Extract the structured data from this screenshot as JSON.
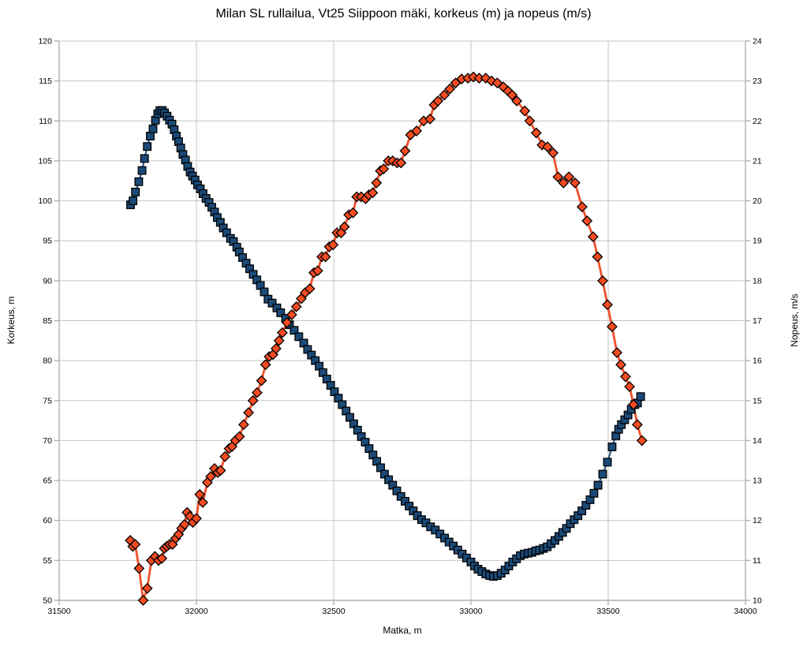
{
  "title": "Milan SL rullailua, Vt25 Siippoon mäki, korkeus (m) ja nopeus (m/s)",
  "chart_data": {
    "type": "line",
    "title": "Milan SL rullailua, Vt25 Siippoon mäki, korkeus (m) ja nopeus (m/s)",
    "xlabel": "Matka, m",
    "ylabel_left": "Korkeus, m",
    "ylabel_right": "Nopeus, m/s",
    "x_range": [
      31500,
      34000
    ],
    "x_ticks": [
      31500,
      32000,
      32500,
      33000,
      33500,
      34000
    ],
    "y_left_range": [
      50,
      120
    ],
    "y_left_ticks": [
      50,
      55,
      60,
      65,
      70,
      75,
      80,
      85,
      90,
      95,
      100,
      105,
      110,
      115,
      120
    ],
    "y_right_range": [
      10,
      24
    ],
    "y_right_ticks": [
      10,
      11,
      12,
      13,
      14,
      15,
      16,
      17,
      18,
      19,
      20,
      21,
      22,
      23,
      24
    ],
    "grid": true,
    "legend": "none",
    "colors": {
      "background": "#FFFFFF",
      "grid": "#C4C4C4",
      "axis": "#AFAFAF",
      "text": "#000000",
      "korkeus_fill": "#1B4A78",
      "korkeus_line": "#2E5E8E",
      "nopeus_fill": "#F44B22",
      "nopeus_line": "#F0512A",
      "marker_stroke": "#000000"
    },
    "series": [
      {
        "name": "Korkeus, m",
        "axis": "left",
        "marker": "square",
        "fill": "#1B4A78",
        "line": "#2E5E8E",
        "points": [
          [
            31760,
            99.5
          ],
          [
            31769,
            100.0
          ],
          [
            31778,
            101.1
          ],
          [
            31790,
            102.4
          ],
          [
            31802,
            103.8
          ],
          [
            31811,
            105.3
          ],
          [
            31821,
            106.8
          ],
          [
            31832,
            108.1
          ],
          [
            31842,
            109.0
          ],
          [
            31851,
            110.1
          ],
          [
            31859,
            110.9
          ],
          [
            31867,
            111.3
          ],
          [
            31876,
            111.3
          ],
          [
            31884,
            111.0
          ],
          [
            31893,
            110.6
          ],
          [
            31902,
            110.1
          ],
          [
            31911,
            109.6
          ],
          [
            31919,
            108.9
          ],
          [
            31927,
            108.1
          ],
          [
            31935,
            107.4
          ],
          [
            31943,
            106.6
          ],
          [
            31951,
            105.8
          ],
          [
            31960,
            105.1
          ],
          [
            31968,
            104.3
          ],
          [
            31977,
            103.6
          ],
          [
            31986,
            103.1
          ],
          [
            31995,
            102.6
          ],
          [
            32004,
            102.0
          ],
          [
            32014,
            101.5
          ],
          [
            32024,
            100.9
          ],
          [
            32035,
            100.3
          ],
          [
            32046,
            99.8
          ],
          [
            32056,
            99.2
          ],
          [
            32066,
            98.6
          ],
          [
            32076,
            97.9
          ],
          [
            32087,
            97.3
          ],
          [
            32098,
            96.6
          ],
          [
            32110,
            96.0
          ],
          [
            32124,
            95.3
          ],
          [
            32135,
            94.9
          ],
          [
            32147,
            94.2
          ],
          [
            32156,
            93.6
          ],
          [
            32168,
            92.9
          ],
          [
            32181,
            92.2
          ],
          [
            32194,
            91.5
          ],
          [
            32207,
            90.8
          ],
          [
            32220,
            90.1
          ],
          [
            32233,
            89.4
          ],
          [
            32247,
            88.6
          ],
          [
            32261,
            87.7
          ],
          [
            32276,
            87.2
          ],
          [
            32293,
            86.6
          ],
          [
            32307,
            86.0
          ],
          [
            32325,
            85.3
          ],
          [
            32339,
            84.5
          ],
          [
            32356,
            83.8
          ],
          [
            32373,
            83.0
          ],
          [
            32391,
            82.2
          ],
          [
            32405,
            81.4
          ],
          [
            32419,
            80.7
          ],
          [
            32433,
            80.0
          ],
          [
            32447,
            79.3
          ],
          [
            32461,
            78.5
          ],
          [
            32475,
            77.7
          ],
          [
            32489,
            76.9
          ],
          [
            32503,
            76.1
          ],
          [
            32517,
            75.3
          ],
          [
            32531,
            74.5
          ],
          [
            32545,
            73.7
          ],
          [
            32559,
            72.9
          ],
          [
            32573,
            72.1
          ],
          [
            32587,
            71.3
          ],
          [
            32601,
            70.5
          ],
          [
            32615,
            69.8
          ],
          [
            32629,
            69.0
          ],
          [
            32643,
            68.2
          ],
          [
            32657,
            67.4
          ],
          [
            32671,
            66.6
          ],
          [
            32685,
            65.8
          ],
          [
            32700,
            65.1
          ],
          [
            32715,
            64.4
          ],
          [
            32730,
            63.7
          ],
          [
            32745,
            63.0
          ],
          [
            32760,
            62.4
          ],
          [
            32775,
            61.8
          ],
          [
            32790,
            61.2
          ],
          [
            32805,
            60.6
          ],
          [
            32820,
            60.1
          ],
          [
            32836,
            59.7
          ],
          [
            32853,
            59.2
          ],
          [
            32870,
            58.8
          ],
          [
            32887,
            58.3
          ],
          [
            32904,
            57.8
          ],
          [
            32920,
            57.3
          ],
          [
            32936,
            56.8
          ],
          [
            32952,
            56.3
          ],
          [
            32968,
            55.8
          ],
          [
            32984,
            55.3
          ],
          [
            33000,
            54.8
          ],
          [
            33013,
            54.3
          ],
          [
            33026,
            53.9
          ],
          [
            33040,
            53.6
          ],
          [
            33054,
            53.3
          ],
          [
            33068,
            53.1
          ],
          [
            33082,
            53.0
          ],
          [
            33096,
            53.1
          ],
          [
            33110,
            53.4
          ],
          [
            33124,
            53.8
          ],
          [
            33138,
            54.3
          ],
          [
            33152,
            54.8
          ],
          [
            33166,
            55.2
          ],
          [
            33180,
            55.6
          ],
          [
            33194,
            55.8
          ],
          [
            33208,
            55.9
          ],
          [
            33222,
            56.0
          ],
          [
            33236,
            56.2
          ],
          [
            33250,
            56.3
          ],
          [
            33264,
            56.5
          ],
          [
            33278,
            56.7
          ],
          [
            33292,
            57.1
          ],
          [
            33306,
            57.5
          ],
          [
            33320,
            58.0
          ],
          [
            33334,
            58.5
          ],
          [
            33348,
            59.0
          ],
          [
            33362,
            59.6
          ],
          [
            33376,
            60.1
          ],
          [
            33390,
            60.6
          ],
          [
            33404,
            61.2
          ],
          [
            33419,
            61.9
          ],
          [
            33434,
            62.6
          ],
          [
            33448,
            63.4
          ],
          [
            33463,
            64.4
          ],
          [
            33480,
            65.8
          ],
          [
            33497,
            67.3
          ],
          [
            33514,
            69.2
          ],
          [
            33528,
            70.6
          ],
          [
            33538,
            71.4
          ],
          [
            33548,
            72.0
          ],
          [
            33560,
            72.6
          ],
          [
            33572,
            73.2
          ],
          [
            33584,
            73.9
          ],
          [
            33597,
            74.5
          ],
          [
            33607,
            74.7
          ],
          [
            33618,
            75.5
          ]
        ]
      },
      {
        "name": "Nopeus, m/s",
        "axis": "right",
        "marker": "diamond",
        "fill": "#F44B22",
        "line": "#F0512A",
        "points": [
          [
            31759,
            11.5
          ],
          [
            31768,
            11.35
          ],
          [
            31777,
            11.4
          ],
          [
            31791,
            10.8
          ],
          [
            31806,
            10.0
          ],
          [
            31821,
            10.3
          ],
          [
            31836,
            11.0
          ],
          [
            31849,
            11.1
          ],
          [
            31862,
            11.0
          ],
          [
            31874,
            11.05
          ],
          [
            31883,
            11.3
          ],
          [
            31892,
            11.35
          ],
          [
            31902,
            11.4
          ],
          [
            31913,
            11.4
          ],
          [
            31924,
            11.55
          ],
          [
            31935,
            11.65
          ],
          [
            31946,
            11.8
          ],
          [
            31957,
            11.9
          ],
          [
            31966,
            12.2
          ],
          [
            31976,
            12.1
          ],
          [
            31987,
            11.95
          ],
          [
            32000,
            12.05
          ],
          [
            32012,
            12.65
          ],
          [
            32023,
            12.45
          ],
          [
            32040,
            12.95
          ],
          [
            32052,
            13.1
          ],
          [
            32066,
            13.3
          ],
          [
            32078,
            13.2
          ],
          [
            32088,
            13.25
          ],
          [
            32104,
            13.6
          ],
          [
            32119,
            13.8
          ],
          [
            32130,
            13.85
          ],
          [
            32142,
            14.0
          ],
          [
            32157,
            14.1
          ],
          [
            32172,
            14.4
          ],
          [
            32190,
            14.7
          ],
          [
            32206,
            15.0
          ],
          [
            32221,
            15.2
          ],
          [
            32237,
            15.5
          ],
          [
            32252,
            15.9
          ],
          [
            32265,
            16.1
          ],
          [
            32279,
            16.15
          ],
          [
            32290,
            16.3
          ],
          [
            32301,
            16.5
          ],
          [
            32313,
            16.7
          ],
          [
            32330,
            16.95
          ],
          [
            32347,
            17.15
          ],
          [
            32364,
            17.35
          ],
          [
            32382,
            17.55
          ],
          [
            32396,
            17.7
          ],
          [
            32413,
            17.8
          ],
          [
            32428,
            18.2
          ],
          [
            32442,
            18.25
          ],
          [
            32457,
            18.6
          ],
          [
            32470,
            18.6
          ],
          [
            32484,
            18.85
          ],
          [
            32498,
            18.9
          ],
          [
            32512,
            19.2
          ],
          [
            32527,
            19.2
          ],
          [
            32539,
            19.35
          ],
          [
            32555,
            19.65
          ],
          [
            32570,
            19.7
          ],
          [
            32584,
            20.1
          ],
          [
            32600,
            20.1
          ],
          [
            32616,
            20.05
          ],
          [
            32628,
            20.15
          ],
          [
            32642,
            20.2
          ],
          [
            32656,
            20.45
          ],
          [
            32670,
            20.75
          ],
          [
            32682,
            20.8
          ],
          [
            32699,
            21.0
          ],
          [
            32715,
            21.0
          ],
          [
            32731,
            20.95
          ],
          [
            32745,
            20.95
          ],
          [
            32760,
            21.25
          ],
          [
            32780,
            21.65
          ],
          [
            32802,
            21.75
          ],
          [
            32828,
            22.0
          ],
          [
            32851,
            22.05
          ],
          [
            32866,
            22.4
          ],
          [
            32880,
            22.5
          ],
          [
            32903,
            22.65
          ],
          [
            32923,
            22.8
          ],
          [
            32944,
            22.95
          ],
          [
            32966,
            23.05
          ],
          [
            32989,
            23.07
          ],
          [
            33009,
            23.1
          ],
          [
            33030,
            23.07
          ],
          [
            33054,
            23.07
          ],
          [
            33075,
            23.0
          ],
          [
            33096,
            22.95
          ],
          [
            33118,
            22.85
          ],
          [
            33135,
            22.75
          ],
          [
            33150,
            22.65
          ],
          [
            33167,
            22.5
          ],
          [
            33196,
            22.25
          ],
          [
            33214,
            22.0
          ],
          [
            33238,
            21.7
          ],
          [
            33259,
            21.4
          ],
          [
            33279,
            21.35
          ],
          [
            33299,
            21.2
          ],
          [
            33317,
            20.6
          ],
          [
            33337,
            20.45
          ],
          [
            33357,
            20.6
          ],
          [
            33379,
            20.45
          ],
          [
            33405,
            19.85
          ],
          [
            33423,
            19.5
          ],
          [
            33445,
            19.1
          ],
          [
            33461,
            18.6
          ],
          [
            33480,
            18.0
          ],
          [
            33497,
            17.4
          ],
          [
            33514,
            16.85
          ],
          [
            33532,
            16.2
          ],
          [
            33546,
            15.9
          ],
          [
            33563,
            15.6
          ],
          [
            33578,
            15.35
          ],
          [
            33592,
            14.9
          ],
          [
            33606,
            14.4
          ],
          [
            33623,
            14.0
          ]
        ]
      }
    ]
  }
}
